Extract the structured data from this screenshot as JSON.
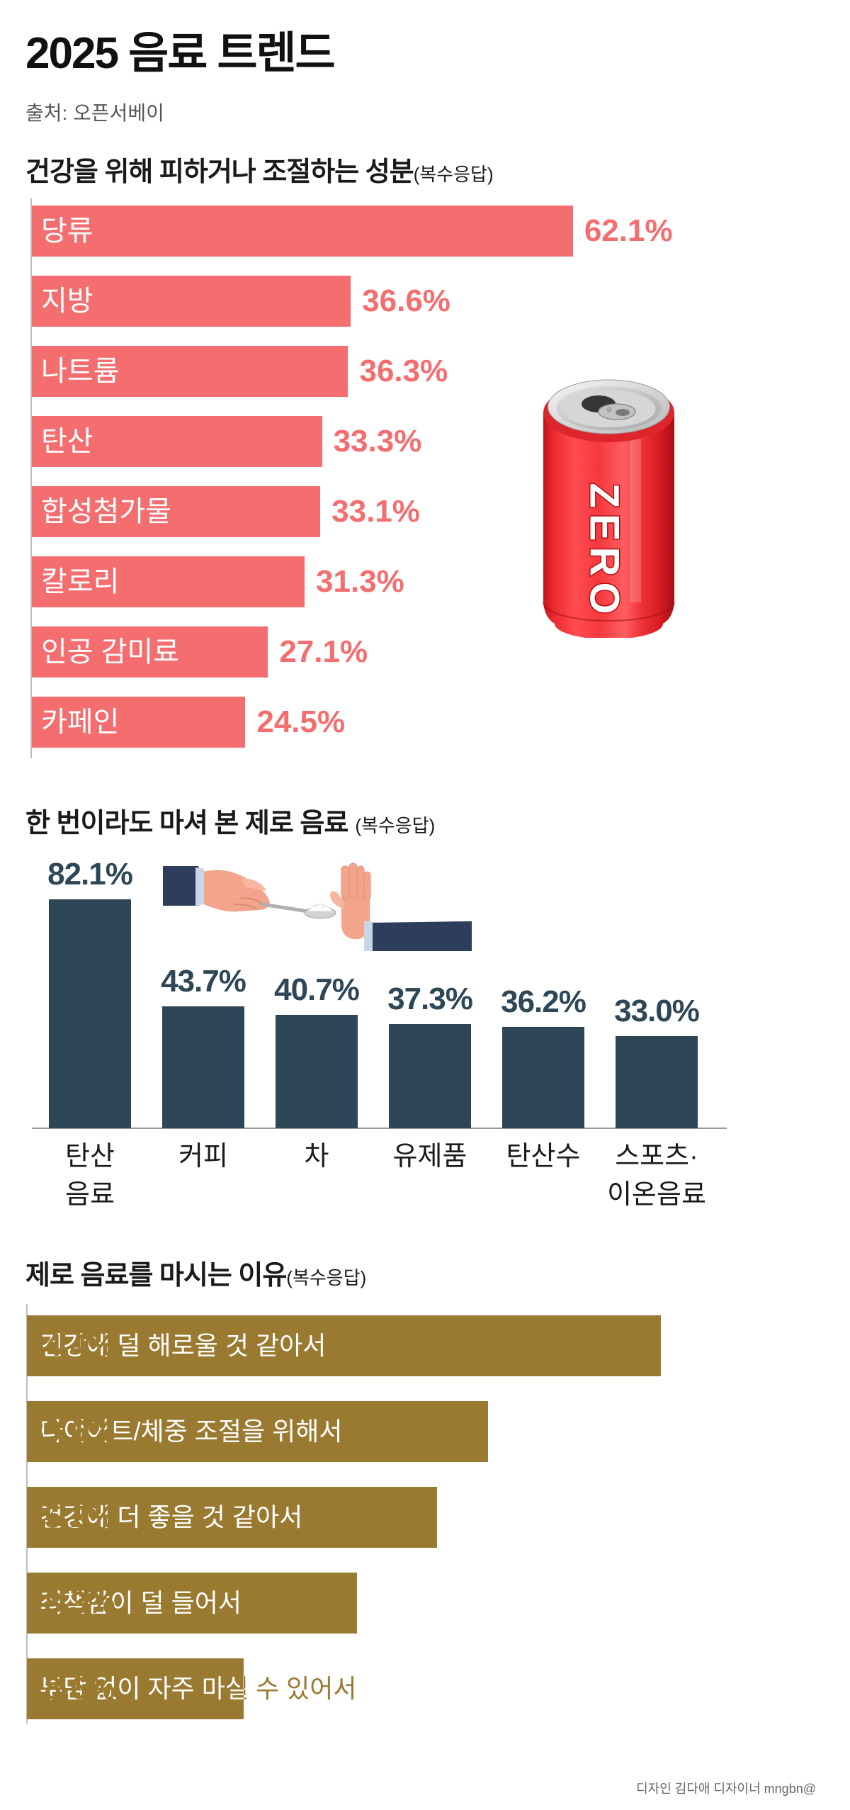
{
  "header": {
    "title": "2025 음료 트렌드",
    "source": "출처: 오픈서베이"
  },
  "chart_data": [
    {
      "type": "bar",
      "orientation": "horizontal",
      "title": "건강을 위해 피하거나 조절하는 성분",
      "note": "(복수응답)",
      "categories": [
        "당류",
        "지방",
        "나트륨",
        "탄산",
        "합성첨가물",
        "칼로리",
        "인공 감미료",
        "카페인"
      ],
      "values": [
        62.1,
        36.6,
        36.3,
        33.3,
        33.1,
        31.3,
        27.1,
        24.5
      ],
      "unit": "%",
      "color": "#F46D6F"
    },
    {
      "type": "bar",
      "orientation": "vertical",
      "title": "한 번이라도 마셔 본 제로 음료",
      "note": "(복수응답)",
      "categories": [
        "탄산\n음료",
        "커피",
        "차",
        "유제품",
        "탄산수",
        "스포츠·\n이온음료"
      ],
      "values": [
        82.1,
        43.7,
        40.7,
        37.3,
        36.2,
        33.0
      ],
      "unit": "%",
      "color": "#2D4756"
    },
    {
      "type": "bar",
      "orientation": "horizontal",
      "title": "제로 음료를 마시는 이유",
      "note": "(복수응답)",
      "categories": [
        "건강에 덜 해로울 것 같아서",
        "다이어트/체중 조절을 위해서",
        "건강에 더 좋을 것 같아서",
        "죄책감이 덜 들어서",
        "부담 없이 자주 마실 수 있어서"
      ],
      "values": [
        54.4,
        39.6,
        35.2,
        28.3,
        18.6
      ],
      "unit": "%",
      "color": "#997A30"
    }
  ],
  "illustrations": {
    "can_label": "ZERO",
    "can_icon": "zero-soda-can-icon",
    "hands_icon": "refusing-sugar-spoon-hands-icon"
  },
  "footer": {
    "credit": "디자인 김다애 디자이너 mngbn@"
  },
  "colors": {
    "background": "#FFFFFF",
    "text": "#1A1A1A",
    "source_text": "#555555",
    "axis": "#BDBDBD"
  }
}
